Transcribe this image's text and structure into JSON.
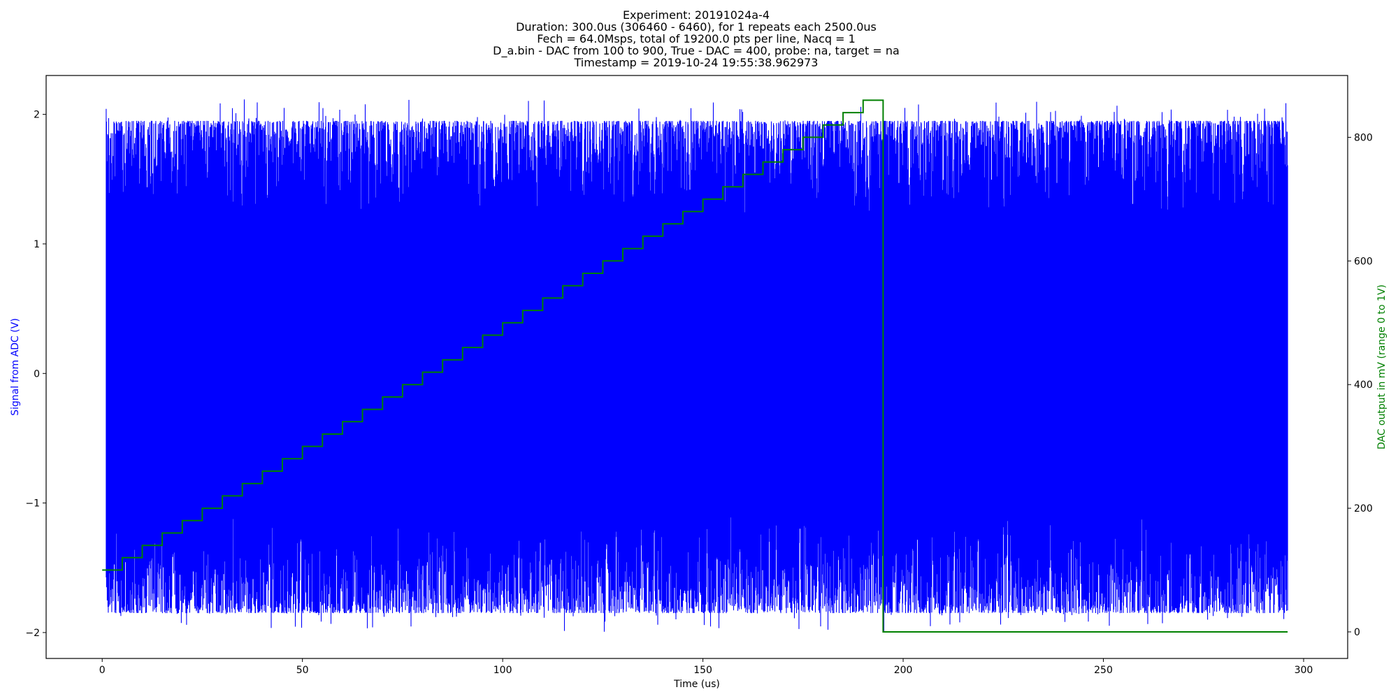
{
  "chart_data": {
    "type": "line",
    "title_lines": [
      "Experiment: 20191024a-4",
      "Duration: 300.0us (306460 - 6460), for 1 repeats each 2500.0us",
      "Fech = 64.0Msps, total of 19200.0 pts per line, Nacq = 1",
      "D_a.bin - DAC from 100 to 900, True - DAC = 400, probe: na, target = na",
      "Timestamp = 2019-10-24 19:55:38.962973"
    ],
    "xlabel": "Time (us)",
    "ylabel_left": "Signal from ADC (V)",
    "ylabel_right": "DAC output in mV (range 0 to 1V)",
    "xlim": [
      -14,
      311
    ],
    "ylim_left": [
      -2.2,
      2.3
    ],
    "ylim_right": [
      -43,
      900
    ],
    "xticks": [
      0,
      50,
      100,
      150,
      200,
      250,
      300
    ],
    "yticks_left": [
      -2,
      -1,
      0,
      1,
      2
    ],
    "yticks_right": [
      0,
      200,
      400,
      600,
      800
    ],
    "grid": false,
    "colors": {
      "adc": "#0000ff",
      "dac": "#008000"
    },
    "series": [
      {
        "axis": "left",
        "kind": "dense_noise",
        "x_range": [
          1,
          296
        ],
        "y_range": [
          -2.0,
          2.12
        ],
        "typical_envelope": [
          -1.85,
          1.95
        ]
      },
      {
        "axis": "right",
        "kind": "step",
        "x": [
          0,
          5,
          10,
          15,
          20,
          25,
          30,
          35,
          40,
          45,
          50,
          55,
          60,
          65,
          70,
          75,
          80,
          85,
          90,
          95,
          100,
          105,
          110,
          115,
          120,
          125,
          130,
          135,
          140,
          145,
          150,
          155,
          160,
          165,
          170,
          175,
          180,
          185,
          190,
          195,
          205,
          296
        ],
        "y": [
          100,
          120,
          140,
          160,
          180,
          200,
          220,
          240,
          260,
          280,
          300,
          320,
          340,
          360,
          380,
          400,
          420,
          440,
          460,
          480,
          500,
          520,
          540,
          560,
          580,
          600,
          620,
          640,
          660,
          680,
          700,
          720,
          740,
          760,
          780,
          800,
          820,
          840,
          860,
          0,
          0,
          0
        ]
      }
    ]
  }
}
